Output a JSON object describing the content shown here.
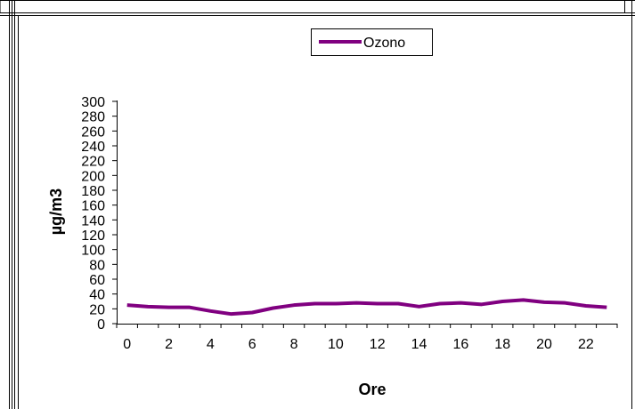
{
  "chart_data": {
    "type": "line",
    "title": "",
    "xlabel": "Ore",
    "ylabel": "µg/m3",
    "ylim": [
      0,
      300
    ],
    "y_ticks": [
      0,
      20,
      40,
      60,
      80,
      100,
      120,
      140,
      160,
      180,
      200,
      220,
      240,
      260,
      280,
      300
    ],
    "x_tick_labels": [
      0,
      2,
      4,
      6,
      8,
      10,
      12,
      14,
      16,
      18,
      20,
      22
    ],
    "x": [
      0,
      1,
      2,
      3,
      4,
      5,
      6,
      7,
      8,
      9,
      10,
      11,
      12,
      13,
      14,
      15,
      16,
      17,
      18,
      19,
      20,
      21,
      22,
      23
    ],
    "grid": false,
    "legend": "top-center",
    "series": [
      {
        "name": "Ozono",
        "color": "#800080",
        "values": [
          25,
          23,
          22,
          22,
          17,
          13,
          15,
          21,
          25,
          27,
          27,
          28,
          27,
          27,
          23,
          27,
          28,
          26,
          30,
          32,
          29,
          28,
          24,
          22
        ]
      }
    ]
  }
}
